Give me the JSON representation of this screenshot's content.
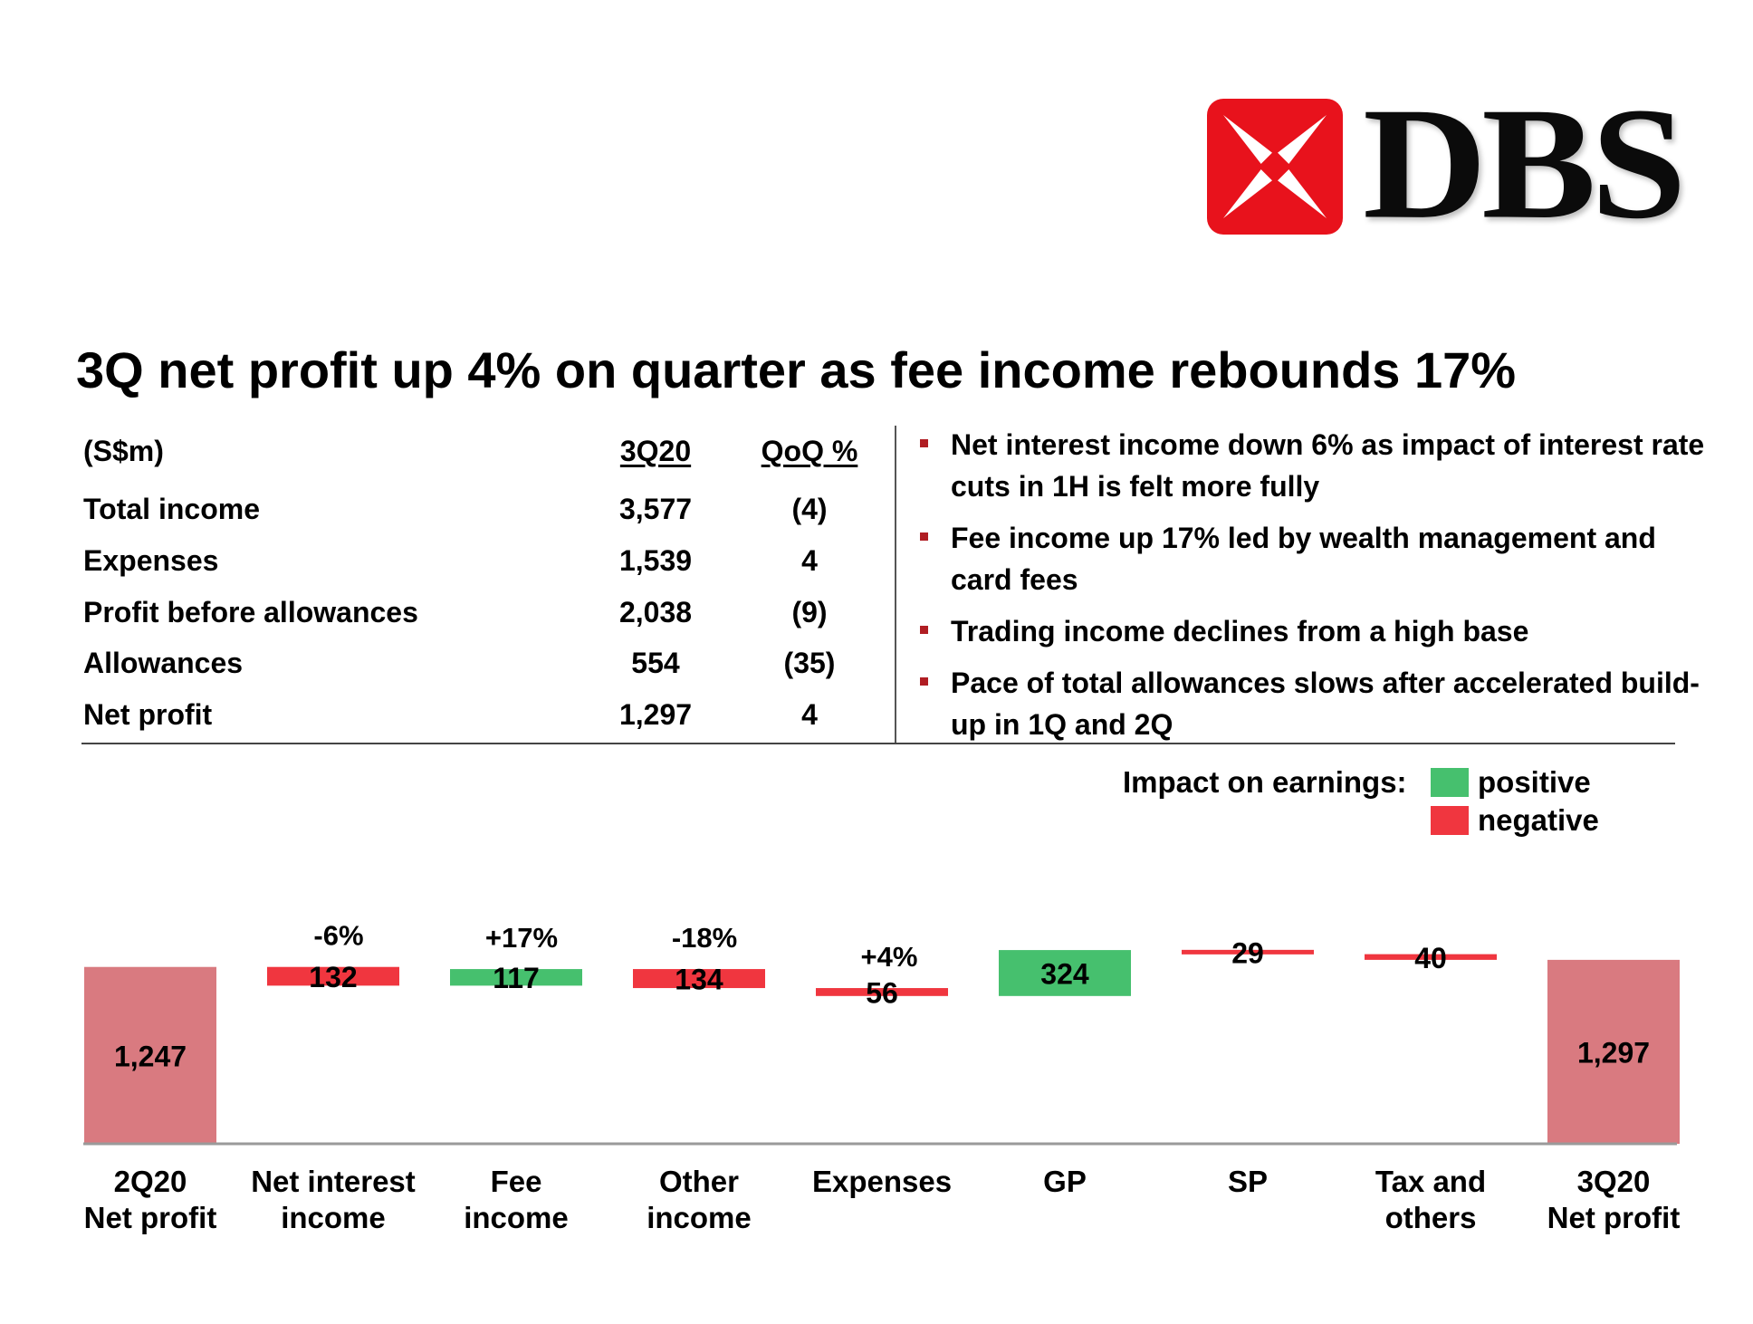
{
  "brand": {
    "name": "DBS",
    "colors": {
      "red": "#e8121c",
      "dark": "#0b0b0b"
    }
  },
  "headline": "3Q net profit up 4% on quarter as fee income rebounds 17%",
  "table": {
    "header": {
      "label": "(S$m)",
      "col1": "3Q20",
      "col2": "QoQ %"
    },
    "rows": [
      {
        "label": "Total income",
        "value": "3,577",
        "qoq": "(4)"
      },
      {
        "label": "Expenses",
        "value": "1,539",
        "qoq": "4"
      },
      {
        "label": "Profit before allowances",
        "value": "2,038",
        "qoq": "(9)"
      },
      {
        "label": "Allowances",
        "value": "554",
        "qoq": "(35)"
      },
      {
        "label": "Net profit",
        "value": "1,297",
        "qoq": "4"
      }
    ]
  },
  "bullets": [
    "Net interest income down 6% as impact of interest rate cuts in 1H is felt more fully",
    "Fee income up 17% led by wealth management and card fees",
    "Trading income declines from a high base",
    "Pace of total allowances slows after accelerated build-up in 1Q and 2Q"
  ],
  "legend": {
    "label": "Impact on earnings:",
    "items": [
      {
        "name": "positive",
        "color": "#46c06e"
      },
      {
        "name": "negative",
        "color": "#f0363f"
      }
    ]
  },
  "chart_data": {
    "type": "bar",
    "subtype": "waterfall",
    "categories": [
      [
        "2Q20",
        "Net profit"
      ],
      [
        "Net interest",
        "income"
      ],
      [
        "Fee",
        "income"
      ],
      [
        "Other",
        "income"
      ],
      [
        "Expenses"
      ],
      [
        "GP"
      ],
      [
        "SP"
      ],
      [
        "Tax and",
        "others"
      ],
      [
        "3Q20",
        "Net profit"
      ]
    ],
    "bars": [
      {
        "value": 1247,
        "label": "1,247",
        "kind": "total"
      },
      {
        "value": 132,
        "label": "132",
        "kind": "negative",
        "pct": "-6%"
      },
      {
        "value": 117,
        "label": "117",
        "kind": "positive",
        "pct": "+17%"
      },
      {
        "value": 134,
        "label": "134",
        "kind": "negative",
        "pct": "-18%"
      },
      {
        "value": 56,
        "label": "56",
        "kind": "negative",
        "pct": "+4%"
      },
      {
        "value": 324,
        "label": "324",
        "kind": "positive"
      },
      {
        "value": 29,
        "label": "29",
        "kind": "negative"
      },
      {
        "value": 40,
        "label": "40",
        "kind": "negative"
      },
      {
        "value": 1297,
        "label": "1,297",
        "kind": "total"
      }
    ],
    "colors": {
      "total": "#d97a80",
      "positive": "#46c06e",
      "negative": "#f0363f"
    },
    "axis_start": 0
  }
}
